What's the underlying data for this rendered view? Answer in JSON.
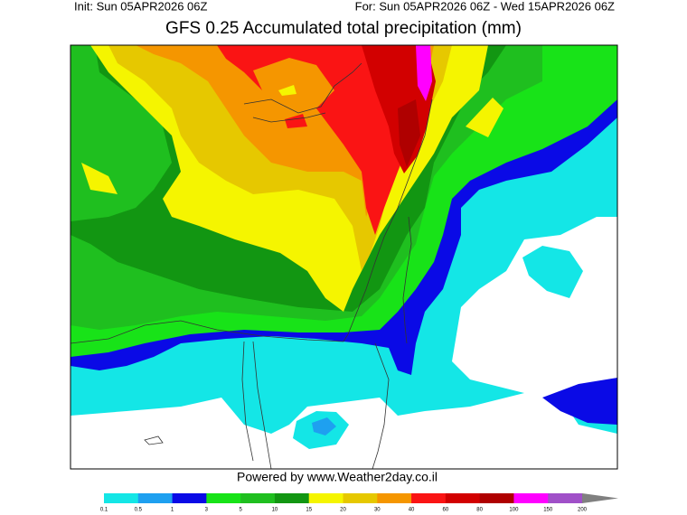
{
  "header": {
    "init": "Init: Sun 05APR2026 06Z",
    "valid": "For: Sun 05APR2026 06Z - Wed 15APR2026 06Z"
  },
  "title": "GFS 0.25 Accumulated total precipitation (mm)",
  "footer": "Powered by www.Weather2day.co.il",
  "colorbar": {
    "ticks": [
      0.1,
      0.5,
      1,
      3,
      5,
      10,
      15,
      20,
      30,
      40,
      60,
      80,
      100,
      150,
      200
    ],
    "colors": [
      "#14e6e6",
      "#1ea0f0",
      "#0a0ae6",
      "#18e318",
      "#1fbf1f",
      "#129612",
      "#f5f500",
      "#e6c800",
      "#f59600",
      "#fa1414",
      "#d20000",
      "#af0000",
      "#ff00ff",
      "#a050c8"
    ]
  }
}
